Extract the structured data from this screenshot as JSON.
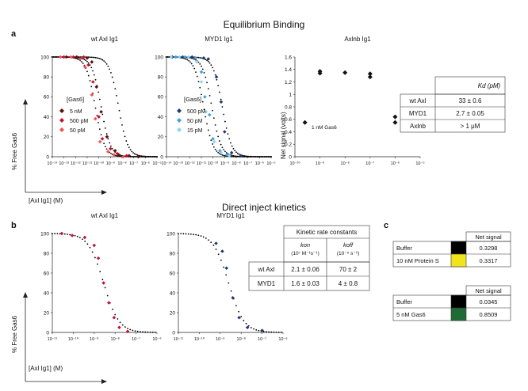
{
  "headings": {
    "equilibrium": "Equilibrium Binding",
    "kinetics": "Direct inject kinetics",
    "panel_a": "a",
    "panel_b": "b",
    "panel_c": "c"
  },
  "axis_labels": {
    "free": "% Free Gas6",
    "conc": "[Axl Ig1] (M)",
    "net_signal": "Net signal (volts)"
  },
  "legend": {
    "title": "[Gas6]",
    "wt": [
      "5 nM",
      "500 pM",
      "50 pM"
    ],
    "myd": [
      "500 pM",
      "50 pM",
      "15 pM"
    ],
    "gas6_note": "1 nM Gas6"
  },
  "kd_table": {
    "header": "Kd (pM)",
    "rows": [
      [
        "wt Axl",
        "33 ± 0.6"
      ],
      [
        "MYD1",
        "2.7 ± 0.05"
      ],
      [
        "Axlnb",
        "> 1 μM"
      ]
    ]
  },
  "kinetic_table": {
    "title": "Kinetic rate constants",
    "kon": "kon",
    "kon_unit": "(10⁷ M⁻¹s⁻¹)",
    "koff": "koff",
    "koff_unit": "(10⁻⁵ s⁻¹)",
    "rows": [
      [
        "wt Axl",
        "2.1 ± 0.06",
        "70 ± 2"
      ],
      [
        "MYD1",
        "1.6 ± 0.03",
        "4 ± 0.8"
      ]
    ]
  },
  "signal_tables": [
    {
      "header": "Net signal",
      "rows": [
        {
          "label": "Buffer",
          "color": "#000000",
          "value": "0.3298"
        },
        {
          "label": "10 nM Protein S",
          "color": "#f2e41c",
          "value": "0.3317"
        }
      ]
    },
    {
      "header": "Net signal",
      "rows": [
        {
          "label": "Buffer",
          "color": "#000000",
          "value": "0.0345"
        },
        {
          "label": "5 nM Gas6",
          "color": "#1f6b35",
          "value": "0.8509"
        }
      ]
    }
  ],
  "colors": {
    "wt_5nM": "#5a0d0d",
    "wt_500pM": "#c8102e",
    "wt_50pM": "#f25252",
    "myd_500pM": "#1f3a78",
    "myd_50pM": "#3fa3d9",
    "myd_15pM": "#8fd3f0",
    "fit": "#000000"
  },
  "chart_data": [
    {
      "id": "a1",
      "type": "scatter",
      "title": "wt Axl Ig1",
      "xlabel": "[Axl Ig1] (M)",
      "ylabel": "% Free Gas6",
      "xscale": "log",
      "xlim": [
        -14,
        -5
      ],
      "ylim": [
        0,
        100
      ],
      "xticks": [
        "10⁻¹⁴",
        "10⁻¹³",
        "10⁻¹²",
        "10⁻¹¹",
        "10⁻¹⁰",
        "10⁻⁹",
        "10⁻⁸",
        "10⁻⁷",
        "10⁻⁶",
        "10⁻⁵"
      ],
      "yticks": [
        0,
        20,
        40,
        60,
        80,
        100
      ],
      "fits": [
        {
          "ec50_log": -10.3,
          "hill": 1.1
        },
        {
          "ec50_log": -9.8,
          "hill": 1.1
        },
        {
          "ec50_log": -8.3,
          "hill": 1.1
        }
      ],
      "series": [
        {
          "name": "5 nM",
          "color_key": "wt_5nM",
          "x_log": [
            -12.8,
            -11.9,
            -11.0,
            -10.6,
            -10.2,
            -9.8,
            -9.3,
            -8.6,
            -8.3,
            -7.4,
            -6.6
          ],
          "y": [
            100,
            100,
            99,
            95,
            70,
            45,
            20,
            6,
            2,
            1,
            0
          ]
        },
        {
          "name": "500 pM",
          "color_key": "wt_500pM",
          "x_log": [
            -13.0,
            -12.2,
            -11.3,
            -10.9,
            -10.5,
            -10.0,
            -9.7,
            -9.0,
            -8.4,
            -7.6
          ],
          "y": [
            100,
            100,
            100,
            92,
            75,
            40,
            18,
            8,
            3,
            1
          ]
        },
        {
          "name": "50 pM",
          "color_key": "wt_50pM",
          "x_log": [
            -13.3,
            -12.4,
            -11.6,
            -11.2,
            -10.6,
            -10.3,
            -9.9,
            -9.2,
            -8.7,
            -7.9
          ],
          "y": [
            100,
            100,
            98,
            90,
            62,
            38,
            15,
            5,
            2,
            0
          ]
        }
      ]
    },
    {
      "id": "a2",
      "type": "scatter",
      "title": "MYD1 Ig1",
      "xlabel": "[Axl Ig1] (M)",
      "ylabel": "% Free Gas6",
      "xscale": "log",
      "xlim": [
        -14,
        -5
      ],
      "ylim": [
        0,
        100
      ],
      "xticks": [
        "10⁻¹⁴",
        "10⁻¹³",
        "10⁻¹²",
        "10⁻¹¹",
        "10⁻¹⁰",
        "10⁻⁹",
        "10⁻⁸",
        "10⁻⁷",
        "10⁻⁶",
        "10⁻⁵"
      ],
      "yticks": [
        0,
        20,
        40,
        60,
        80,
        100
      ],
      "fits": [
        {
          "ec50_log": -10.8,
          "hill": 1.1
        },
        {
          "ec50_log": -10.1,
          "hill": 1.1
        },
        {
          "ec50_log": -9.2,
          "hill": 1.1
        }
      ],
      "series": [
        {
          "name": "500 pM",
          "color_key": "myd_500pM",
          "x_log": [
            -13.5,
            -12.6,
            -11.8,
            -10.8,
            -10.4,
            -9.7,
            -9.3,
            -9.0,
            -8.4,
            -7.6
          ],
          "y": [
            100,
            100,
            100,
            99,
            98,
            80,
            55,
            25,
            4,
            1
          ]
        },
        {
          "name": "50 pM",
          "color_key": "myd_50pM",
          "x_log": [
            -13.2,
            -12.4,
            -11.5,
            -11.0,
            -10.7,
            -10.3,
            -10.0,
            -9.4,
            -8.8
          ],
          "y": [
            100,
            100,
            99,
            85,
            60,
            42,
            18,
            6,
            2
          ]
        },
        {
          "name": "15 pM",
          "color_key": "myd_15pM",
          "x_log": [
            -13.6,
            -12.9,
            -12.1,
            -11.4,
            -11.0,
            -10.6,
            -9.9,
            -9.3,
            -8.6
          ],
          "y": [
            100,
            100,
            100,
            95,
            75,
            45,
            15,
            4,
            1
          ]
        }
      ]
    },
    {
      "id": "a3",
      "type": "scatter",
      "title": "Axlnb Ig1",
      "xlabel": "",
      "ylabel": "Net signal (volts)",
      "xscale": "log",
      "xlim": [
        -10,
        -5
      ],
      "ylim": [
        0,
        1.6
      ],
      "xticks": [
        "10⁻¹⁰",
        "10⁻⁹",
        "10⁻⁸",
        "10⁻⁷",
        "10⁻⁶",
        "10⁻⁵"
      ],
      "yticks": [
        0,
        0.2,
        0.4,
        0.6,
        0.8,
        1,
        1.2,
        1.4,
        1.6
      ],
      "series": [
        {
          "name": "1 nM Gas6",
          "x_log": [
            -9.6,
            -9,
            -9,
            -8,
            -7,
            -7,
            -6,
            -6
          ],
          "y": [
            0.55,
            1.34,
            1.37,
            1.35,
            1.28,
            1.33,
            0.55,
            0.64
          ]
        }
      ]
    },
    {
      "id": "b1",
      "type": "scatter",
      "title": "wt Axl Ig1",
      "xlabel": "[Axl Ig1] (M)",
      "ylabel": "% Free Gas6",
      "xscale": "log",
      "xlim": [
        -11,
        -6
      ],
      "ylim": [
        0,
        100
      ],
      "xticks": [
        "10⁻¹¹",
        "10⁻¹⁰",
        "10⁻⁹",
        "10⁻⁸",
        "10⁻⁷",
        "10⁻⁶"
      ],
      "yticks": [
        0,
        20,
        40,
        60,
        80,
        100
      ],
      "fit": {
        "ec50_log": -8.55,
        "hill": 1.2
      },
      "series": [
        {
          "name": "wt Axl",
          "color_key": "wt_500pM",
          "x_log": [
            -10.55,
            -10.05,
            -9.45,
            -9.0,
            -8.8,
            -8.55,
            -8.3,
            -8.05,
            -7.8,
            -7.4
          ],
          "y": [
            100,
            98,
            96,
            88,
            75,
            50,
            30,
            15,
            5,
            1
          ]
        }
      ]
    },
    {
      "id": "b2",
      "type": "scatter",
      "title": "MYD1 Ig1",
      "xlabel": "",
      "ylabel": "",
      "xscale": "log",
      "xlim": [
        -11,
        -6
      ],
      "ylim": [
        0,
        100
      ],
      "xticks": [
        "10⁻¹¹",
        "10⁻¹⁰",
        "10⁻⁹",
        "10⁻⁸",
        "10⁻⁷",
        "10⁻⁶"
      ],
      "yticks": [
        0,
        20,
        40,
        60,
        80,
        100
      ],
      "fit": {
        "ec50_log": -8.6,
        "hill": 1.2
      },
      "series": [
        {
          "name": "MYD1",
          "color_key": "myd_500pM",
          "x_log": [
            -9.2,
            -8.9,
            -8.7,
            -8.4,
            -8.1,
            -7.7,
            -7.0
          ],
          "y": [
            90,
            82,
            65,
            35,
            15,
            5,
            2
          ]
        }
      ]
    }
  ]
}
